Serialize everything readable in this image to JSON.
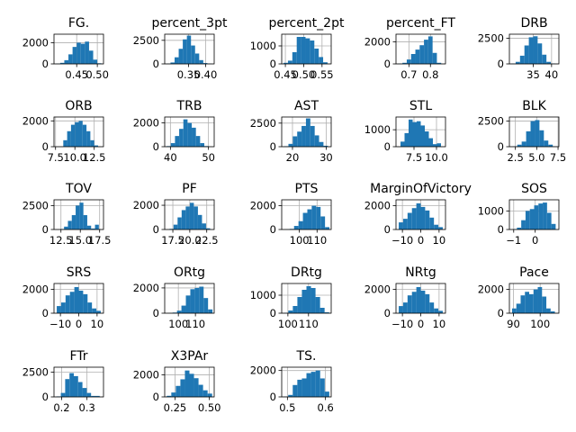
{
  "chart_data": [
    {
      "type": "histogram",
      "title": "FG.",
      "bar_color": "#1f77b4",
      "grid": true,
      "xlim": [
        0.395,
        0.515
      ],
      "ylim": [
        0,
        2800
      ],
      "x_ticks": [
        0.45,
        0.5
      ],
      "x_tick_labels": [
        "0.45",
        "0.50"
      ],
      "y_ticks": [
        0,
        2000
      ],
      "y_tick_labels": [
        "0",
        "2000"
      ],
      "bin_edges": [
        0.4,
        0.41,
        0.42,
        0.43,
        0.44,
        0.45,
        0.46,
        0.47,
        0.48,
        0.49,
        0.5,
        0.51
      ],
      "counts": [
        20,
        100,
        350,
        900,
        1600,
        2000,
        1900,
        2100,
        1250,
        400,
        60
      ]
    },
    {
      "type": "histogram",
      "title": "percent_3pt",
      "bar_color": "#1f77b4",
      "grid": true,
      "xlim": [
        0.28,
        0.425
      ],
      "ylim": [
        0,
        3150
      ],
      "x_ticks": [
        0.35,
        0.4
      ],
      "x_tick_labels": [
        "0.35",
        "0.40"
      ],
      "y_ticks": [
        0,
        2500
      ],
      "y_tick_labels": [
        "0",
        "2500"
      ],
      "bin_edges": [
        0.285,
        0.297,
        0.309,
        0.321,
        0.333,
        0.345,
        0.357,
        0.369,
        0.381,
        0.393,
        0.405,
        0.417
      ],
      "counts": [
        20,
        150,
        700,
        1600,
        2600,
        3000,
        1950,
        1100,
        400,
        90,
        20
      ]
    },
    {
      "type": "histogram",
      "title": "percent_2pt",
      "bar_color": "#1f77b4",
      "grid": true,
      "xlim": [
        0.44,
        0.575
      ],
      "ylim": [
        0,
        1650
      ],
      "x_ticks": [
        0.45,
        0.5,
        0.55
      ],
      "x_tick_labels": [
        "0.45",
        "0.50",
        "0.55"
      ],
      "y_ticks": [
        0,
        1000
      ],
      "y_tick_labels": [
        "0",
        "1000"
      ],
      "bin_edges": [
        0.445,
        0.457,
        0.469,
        0.481,
        0.493,
        0.505,
        0.517,
        0.529,
        0.541,
        0.553,
        0.565
      ],
      "counts": [
        60,
        180,
        650,
        1500,
        1500,
        1420,
        1300,
        850,
        380,
        90
      ]
    },
    {
      "type": "histogram",
      "title": "percent_FT",
      "bar_color": "#1f77b4",
      "grid": true,
      "xlim": [
        0.64,
        0.87
      ],
      "ylim": [
        0,
        2700
      ],
      "x_ticks": [
        0.7,
        0.8
      ],
      "x_tick_labels": [
        "0.7",
        "0.8"
      ],
      "y_ticks": [
        0,
        2000
      ],
      "y_tick_labels": [
        "0",
        "2000"
      ],
      "bin_edges": [
        0.65,
        0.67,
        0.69,
        0.71,
        0.73,
        0.75,
        0.77,
        0.79,
        0.81,
        0.83,
        0.85
      ],
      "counts": [
        20,
        100,
        400,
        900,
        1300,
        1700,
        2200,
        2500,
        1000,
        100
      ]
    },
    {
      "type": "histogram",
      "title": "DRB",
      "bar_color": "#1f77b4",
      "grid": true,
      "xlim": [
        28.5,
        42
      ],
      "ylim": [
        0,
        2900
      ],
      "x_ticks": [
        35,
        40
      ],
      "x_tick_labels": [
        "35",
        "40"
      ],
      "y_ticks": [
        0,
        2500
      ],
      "y_tick_labels": [
        "0",
        "2500"
      ],
      "bin_edges": [
        29,
        30.2,
        31.4,
        32.6,
        33.8,
        35,
        36.2,
        37.4,
        38.6,
        39.8,
        41
      ],
      "counts": [
        30,
        200,
        800,
        1800,
        2600,
        2700,
        2000,
        900,
        200,
        30
      ]
    },
    {
      "type": "histogram",
      "title": "ORB",
      "bar_color": "#1f77b4",
      "grid": true,
      "xlim": [
        7.3,
        13.7
      ],
      "ylim": [
        0,
        2300
      ],
      "x_ticks": [
        7.5,
        10,
        12.5
      ],
      "x_tick_labels": [
        "7.5",
        "10.0",
        "12.5"
      ],
      "y_ticks": [
        0,
        2000
      ],
      "y_tick_labels": [
        "0",
        "2000"
      ],
      "bin_edges": [
        8.5,
        9.0,
        9.5,
        10.0,
        10.5,
        11.0,
        11.5,
        12.0,
        12.5,
        13.0
      ],
      "counts": [
        500,
        1200,
        1700,
        1900,
        2000,
        1700,
        1200,
        500,
        100
      ]
    },
    {
      "type": "histogram",
      "title": "TRB",
      "bar_color": "#1f77b4",
      "grid": true,
      "xlim": [
        38.5,
        51.5
      ],
      "ylim": [
        0,
        2500
      ],
      "x_ticks": [
        40,
        50
      ],
      "x_tick_labels": [
        "40",
        "50"
      ],
      "y_ticks": [
        0,
        2000
      ],
      "y_tick_labels": [
        "0",
        "2000"
      ],
      "bin_edges": [
        39,
        40.1,
        41.2,
        42.3,
        43.4,
        44.5,
        45.6,
        46.7,
        47.8,
        48.9,
        50
      ],
      "counts": [
        50,
        300,
        900,
        1500,
        2300,
        2000,
        1600,
        900,
        300,
        50
      ]
    },
    {
      "type": "histogram",
      "title": "AST",
      "bar_color": "#1f77b4",
      "grid": true,
      "xlim": [
        16.8,
        31.5
      ],
      "ylim": [
        0,
        3150
      ],
      "x_ticks": [
        20,
        30
      ],
      "x_tick_labels": [
        "20",
        "30"
      ],
      "y_ticks": [
        0,
        2500
      ],
      "y_tick_labels": [
        "0",
        "2500"
      ],
      "bin_edges": [
        17.5,
        18.8,
        20.1,
        21.4,
        22.7,
        24,
        25.3,
        26.6,
        27.9,
        29.2,
        30.5
      ],
      "counts": [
        50,
        300,
        1100,
        1600,
        2200,
        3000,
        2200,
        1200,
        500,
        100
      ]
    },
    {
      "type": "histogram",
      "title": "STL",
      "bar_color": "#1f77b4",
      "grid": true,
      "xlim": [
        5.5,
        11
      ],
      "ylim": [
        0,
        1750
      ],
      "x_ticks": [
        7.5,
        10
      ],
      "x_tick_labels": [
        "7.5",
        "10.0"
      ],
      "y_ticks": [
        0,
        1000
      ],
      "y_tick_labels": [
        "0",
        "1000"
      ],
      "bin_edges": [
        6,
        6.45,
        6.9,
        7.35,
        7.8,
        8.25,
        8.7,
        9.15,
        9.6,
        10.05,
        10.5
      ],
      "counts": [
        300,
        800,
        1600,
        1450,
        1500,
        1250,
        900,
        500,
        150,
        200
      ]
    },
    {
      "type": "histogram",
      "title": "BLK",
      "bar_color": "#1f77b4",
      "grid": true,
      "xlim": [
        1.8,
        7.6
      ],
      "ylim": [
        0,
        2900
      ],
      "x_ticks": [
        2.5,
        5,
        7.5
      ],
      "x_tick_labels": [
        "2.5",
        "5.0",
        "7.5"
      ],
      "y_ticks": [
        0,
        2500
      ],
      "y_tick_labels": [
        "0",
        "2500"
      ],
      "bin_edges": [
        2.2,
        2.72,
        3.24,
        3.76,
        4.28,
        4.8,
        5.32,
        5.84,
        6.36,
        6.88,
        7.4
      ],
      "counts": [
        30,
        200,
        500,
        1500,
        2500,
        2600,
        1600,
        600,
        200,
        30
      ]
    },
    {
      "type": "histogram",
      "title": "TOV",
      "bar_color": "#1f77b4",
      "grid": true,
      "xlim": [
        11.6,
        18
      ],
      "ylim": [
        0,
        3100
      ],
      "x_ticks": [
        12.5,
        15,
        17.5
      ],
      "x_tick_labels": [
        "12.5",
        "15.0",
        "17.5"
      ],
      "y_ticks": [
        0,
        2500
      ],
      "y_tick_labels": [
        "0",
        "2500"
      ],
      "bin_edges": [
        12.4,
        12.9,
        13.4,
        13.9,
        14.4,
        14.9,
        15.4,
        15.9,
        16.4,
        16.9,
        17.4
      ],
      "counts": [
        50,
        300,
        900,
        1500,
        2500,
        2800,
        1500,
        400,
        100,
        500
      ]
    },
    {
      "type": "histogram",
      "title": "PF",
      "bar_color": "#1f77b4",
      "grid": true,
      "xlim": [
        16.3,
        23.6
      ],
      "ylim": [
        0,
        2450
      ],
      "x_ticks": [
        17.5,
        20,
        22.5
      ],
      "x_tick_labels": [
        "17.5",
        "20.0",
        "22.5"
      ],
      "y_ticks": [
        0,
        2000
      ],
      "y_tick_labels": [
        "0",
        "2000"
      ],
      "bin_edges": [
        17,
        17.6,
        18.2,
        18.8,
        19.4,
        20,
        20.6,
        21.2,
        21.8,
        22.4,
        23
      ],
      "counts": [
        50,
        400,
        1000,
        1600,
        1900,
        2200,
        1900,
        1200,
        500,
        100
      ]
    },
    {
      "type": "histogram",
      "title": "PTS",
      "bar_color": "#1f77b4",
      "grid": true,
      "xlim": [
        90,
        118
      ],
      "ylim": [
        0,
        2500
      ],
      "x_ticks": [
        100,
        110
      ],
      "x_tick_labels": [
        "100",
        "110"
      ],
      "y_ticks": [
        0,
        2000
      ],
      "y_tick_labels": [
        "0",
        "2000"
      ],
      "bin_edges": [
        92,
        94.5,
        97,
        99.5,
        102,
        104.5,
        107,
        109.5,
        112,
        114.5,
        117
      ],
      "counts": [
        10,
        50,
        300,
        700,
        1400,
        1700,
        2000,
        1900,
        1100,
        200
      ]
    },
    {
      "type": "histogram",
      "title": "MarginOfVictory",
      "bar_color": "#1f77b4",
      "grid": true,
      "xlim": [
        -13.5,
        13.5
      ],
      "ylim": [
        0,
        2500
      ],
      "x_ticks": [
        -10,
        0,
        10
      ],
      "x_tick_labels": [
        "−10",
        "0",
        "10"
      ],
      "y_ticks": [
        0,
        2000
      ],
      "y_tick_labels": [
        "0",
        "2000"
      ],
      "bin_edges": [
        -12,
        -9.6,
        -7.2,
        -4.8,
        -2.4,
        0,
        2.4,
        4.8,
        7.2,
        9.6,
        12
      ],
      "counts": [
        600,
        900,
        1400,
        1800,
        2200,
        1900,
        1600,
        1000,
        400,
        200
      ]
    },
    {
      "type": "histogram",
      "title": "SOS",
      "bar_color": "#1f77b4",
      "grid": true,
      "xlim": [
        -1.2,
        1.1
      ],
      "ylim": [
        0,
        1600
      ],
      "x_ticks": [
        -1,
        0
      ],
      "x_tick_labels": [
        "−1",
        "0"
      ],
      "y_ticks": [
        0,
        1000
      ],
      "y_tick_labels": [
        "0",
        "1000"
      ],
      "bin_edges": [
        -1.05,
        -0.85,
        -0.65,
        -0.45,
        -0.25,
        -0.05,
        0.15,
        0.35,
        0.55,
        0.75,
        0.95
      ],
      "counts": [
        20,
        100,
        500,
        1000,
        1100,
        1300,
        1400,
        1450,
        900,
        300
      ]
    },
    {
      "type": "histogram",
      "title": "SRS",
      "bar_color": "#1f77b4",
      "grid": true,
      "xlim": [
        -13.5,
        13.5
      ],
      "ylim": [
        0,
        2500
      ],
      "x_ticks": [
        -10,
        0,
        10
      ],
      "x_tick_labels": [
        "−10",
        "0",
        "10"
      ],
      "y_ticks": [
        0,
        2000
      ],
      "y_tick_labels": [
        "0",
        "2000"
      ],
      "bin_edges": [
        -12,
        -9.6,
        -7.2,
        -4.8,
        -2.4,
        0,
        2.4,
        4.8,
        7.2,
        9.6,
        12
      ],
      "counts": [
        600,
        900,
        1500,
        1800,
        2200,
        1900,
        1600,
        900,
        400,
        200
      ]
    },
    {
      "type": "histogram",
      "title": "ORtg",
      "bar_color": "#1f77b4",
      "grid": true,
      "xlim": [
        92,
        121
      ],
      "ylim": [
        0,
        2350
      ],
      "x_ticks": [
        100,
        110
      ],
      "x_tick_labels": [
        "100",
        "110"
      ],
      "y_ticks": [
        0,
        2000
      ],
      "y_tick_labels": [
        "0",
        "2000"
      ],
      "bin_edges": [
        94,
        96.6,
        99.2,
        101.8,
        104.4,
        107,
        109.6,
        112.2,
        114.8,
        117.4,
        120
      ],
      "counts": [
        10,
        50,
        200,
        600,
        1400,
        1900,
        2000,
        2100,
        1200,
        300
      ]
    },
    {
      "type": "histogram",
      "title": "DRtg",
      "bar_color": "#1f77b4",
      "grid": true,
      "xlim": [
        97,
        121
      ],
      "ylim": [
        0,
        1650
      ],
      "x_ticks": [
        100,
        110
      ],
      "x_tick_labels": [
        "100",
        "110"
      ],
      "y_ticks": [
        0,
        1000
      ],
      "y_tick_labels": [
        "0",
        "1000"
      ],
      "bin_edges": [
        98,
        100.2,
        102.4,
        104.6,
        106.8,
        109,
        111.2,
        113.4,
        115.6,
        117.8,
        120
      ],
      "counts": [
        20,
        150,
        400,
        900,
        1300,
        1500,
        1400,
        900,
        300,
        50
      ]
    },
    {
      "type": "histogram",
      "title": "NRtg",
      "bar_color": "#1f77b4",
      "grid": true,
      "xlim": [
        -13.5,
        13.5
      ],
      "ylim": [
        0,
        2500
      ],
      "x_ticks": [
        -10,
        0,
        10
      ],
      "x_tick_labels": [
        "−10",
        "0",
        "10"
      ],
      "y_ticks": [
        0,
        2000
      ],
      "y_tick_labels": [
        "0",
        "2000"
      ],
      "bin_edges": [
        -12,
        -9.6,
        -7.2,
        -4.8,
        -2.4,
        0,
        2.4,
        4.8,
        7.2,
        9.6,
        12
      ],
      "counts": [
        600,
        900,
        1500,
        1800,
        2200,
        1900,
        1600,
        900,
        400,
        200
      ]
    },
    {
      "type": "histogram",
      "title": "Pace",
      "bar_color": "#1f77b4",
      "grid": true,
      "xlim": [
        88.5,
        107
      ],
      "ylim": [
        0,
        2500
      ],
      "x_ticks": [
        90,
        100
      ],
      "x_tick_labels": [
        "90",
        "100"
      ],
      "y_ticks": [
        0,
        2000
      ],
      "y_tick_labels": [
        "0",
        "2000"
      ],
      "bin_edges": [
        89.5,
        91.1,
        92.7,
        94.3,
        95.9,
        97.5,
        99.1,
        100.7,
        102.3,
        103.9,
        105.5
      ],
      "counts": [
        400,
        800,
        1500,
        1800,
        1600,
        2000,
        2200,
        1400,
        400,
        150
      ]
    },
    {
      "type": "histogram",
      "title": "FTr",
      "bar_color": "#1f77b4",
      "grid": true,
      "xlim": [
        0.17,
        0.365
      ],
      "ylim": [
        0,
        3000
      ],
      "x_ticks": [
        0.2,
        0.3
      ],
      "x_tick_labels": [
        "0.2",
        "0.3"
      ],
      "y_ticks": [
        0,
        2500
      ],
      "y_tick_labels": [
        "0",
        "2500"
      ],
      "bin_edges": [
        0.18,
        0.197,
        0.214,
        0.231,
        0.248,
        0.265,
        0.282,
        0.299,
        0.316,
        0.333,
        0.35
      ],
      "counts": [
        50,
        400,
        1800,
        2400,
        2100,
        1500,
        900,
        400,
        100,
        100
      ]
    },
    {
      "type": "histogram",
      "title": "X3PAr",
      "bar_color": "#1f77b4",
      "grid": true,
      "xlim": [
        0.175,
        0.535
      ],
      "ylim": [
        0,
        2700
      ],
      "x_ticks": [
        0.25,
        0.5
      ],
      "x_tick_labels": [
        "0.25",
        "0.50"
      ],
      "y_ticks": [
        0,
        2000
      ],
      "y_tick_labels": [
        "0",
        "2000"
      ],
      "bin_edges": [
        0.19,
        0.223,
        0.256,
        0.289,
        0.322,
        0.355,
        0.388,
        0.421,
        0.454,
        0.487,
        0.52
      ],
      "counts": [
        100,
        400,
        1000,
        1600,
        2400,
        2100,
        1700,
        1100,
        600,
        300
      ]
    },
    {
      "type": "histogram",
      "title": "TS.",
      "bar_color": "#1f77b4",
      "grid": true,
      "xlim": [
        0.485,
        0.615
      ],
      "ylim": [
        0,
        2250
      ],
      "x_ticks": [
        0.5,
        0.6
      ],
      "x_tick_labels": [
        "0.5",
        "0.6"
      ],
      "y_ticks": [
        0,
        2000
      ],
      "y_tick_labels": [
        "0",
        "2000"
      ],
      "bin_edges": [
        0.49,
        0.502,
        0.514,
        0.526,
        0.538,
        0.55,
        0.562,
        0.574,
        0.586,
        0.598,
        0.61
      ],
      "counts": [
        20,
        150,
        900,
        1300,
        1400,
        1800,
        1900,
        2000,
        1400,
        400
      ]
    }
  ]
}
